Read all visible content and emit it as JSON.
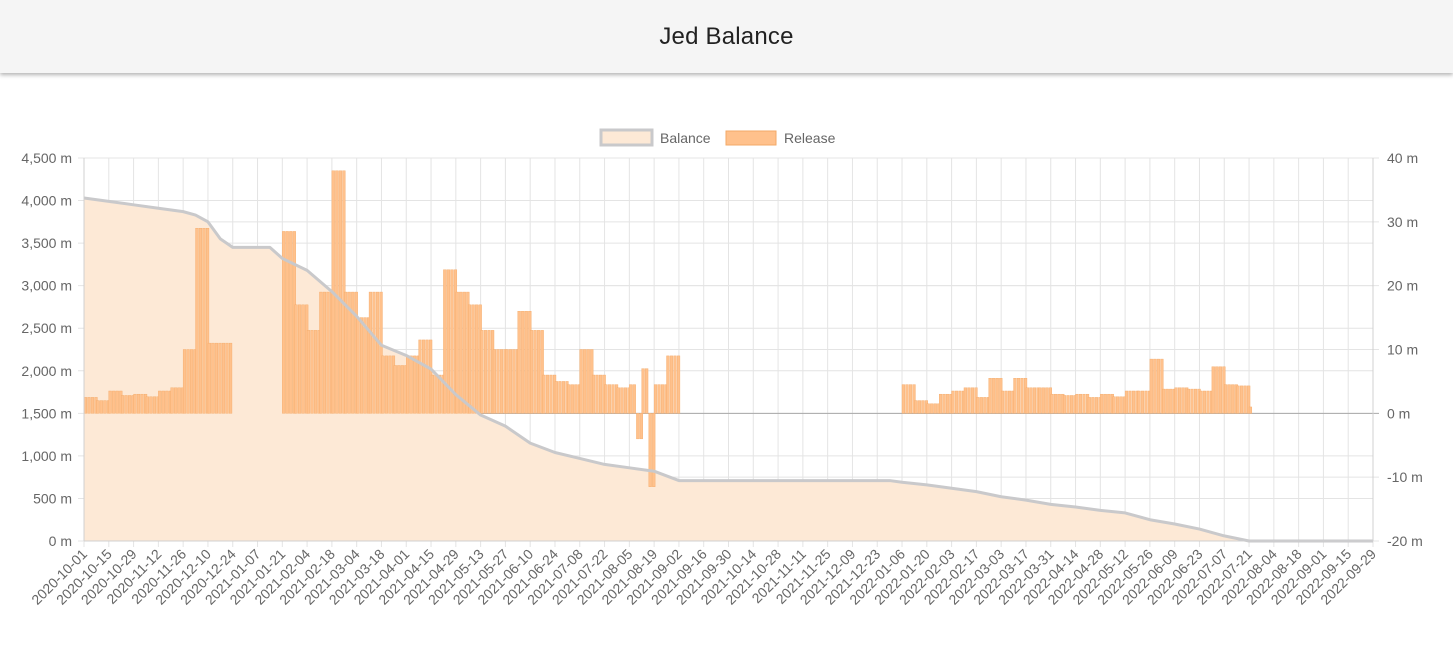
{
  "header": {
    "title": "Jed Balance"
  },
  "chart_data": {
    "type": "bar+area",
    "title": "",
    "legend": {
      "position": "top",
      "entries": [
        {
          "name": "Balance",
          "type": "area"
        },
        {
          "name": "Release",
          "type": "bar"
        }
      ]
    },
    "grid": true,
    "y_left": {
      "min": 0,
      "max": 4500,
      "step": 500,
      "suffix": " m",
      "ticks": [
        "0 m",
        "500 m",
        "1,000 m",
        "1,500 m",
        "2,000 m",
        "2,500 m",
        "3,000 m",
        "3,500 m",
        "4,000 m",
        "4,500 m"
      ]
    },
    "y_right": {
      "min": -20,
      "max": 40,
      "step": 10,
      "suffix": " m",
      "ticks": [
        "-20 m",
        "-10 m",
        "0 m",
        "10 m",
        "20 m",
        "30 m",
        "40 m"
      ]
    },
    "x": {
      "start": "2020-10-01",
      "end": "2022-09-29",
      "tick_labels": [
        "2020-10-01",
        "2020-10-15",
        "2020-10-29",
        "2020-11-12",
        "2020-11-26",
        "2020-12-10",
        "2020-12-24",
        "2021-01-07",
        "2021-01-21",
        "2021-02-04",
        "2021-02-18",
        "2021-03-04",
        "2021-03-18",
        "2021-04-01",
        "2021-04-15",
        "2021-04-29",
        "2021-05-13",
        "2021-05-27",
        "2021-06-10",
        "2021-06-24",
        "2021-07-08",
        "2021-07-22",
        "2021-08-05",
        "2021-08-19",
        "2021-09-02",
        "2021-09-16",
        "2021-09-30",
        "2021-10-14",
        "2021-10-28",
        "2021-11-11",
        "2021-11-25",
        "2021-12-09",
        "2021-12-23",
        "2022-01-06",
        "2022-01-20",
        "2022-02-03",
        "2022-02-17",
        "2022-03-03",
        "2022-03-17",
        "2022-03-31",
        "2022-04-14",
        "2022-04-28",
        "2022-05-12",
        "2022-05-26",
        "2022-06-09",
        "2022-06-23",
        "2022-07-07",
        "2022-07-21",
        "2022-08-04",
        "2022-08-18",
        "2022-09-01",
        "2022-09-15",
        "2022-09-29"
      ]
    },
    "balance": {
      "name": "Balance",
      "axis": "left",
      "points": [
        [
          "2020-10-01",
          4030
        ],
        [
          "2020-10-15",
          3990
        ],
        [
          "2020-10-29",
          3950
        ],
        [
          "2020-11-12",
          3910
        ],
        [
          "2020-11-26",
          3870
        ],
        [
          "2020-12-03",
          3830
        ],
        [
          "2020-12-10",
          3750
        ],
        [
          "2020-12-17",
          3550
        ],
        [
          "2020-12-24",
          3450
        ],
        [
          "2021-01-14",
          3450
        ],
        [
          "2021-01-21",
          3320
        ],
        [
          "2021-02-04",
          3180
        ],
        [
          "2021-02-18",
          2930
        ],
        [
          "2021-03-04",
          2640
        ],
        [
          "2021-03-18",
          2300
        ],
        [
          "2021-04-01",
          2180
        ],
        [
          "2021-04-15",
          2020
        ],
        [
          "2021-04-29",
          1720
        ],
        [
          "2021-05-13",
          1480
        ],
        [
          "2021-05-27",
          1350
        ],
        [
          "2021-06-10",
          1150
        ],
        [
          "2021-06-24",
          1040
        ],
        [
          "2021-07-08",
          970
        ],
        [
          "2021-07-22",
          900
        ],
        [
          "2021-08-05",
          860
        ],
        [
          "2021-08-19",
          820
        ],
        [
          "2021-09-02",
          710
        ],
        [
          "2021-12-30",
          710
        ],
        [
          "2022-01-06",
          690
        ],
        [
          "2022-01-20",
          660
        ],
        [
          "2022-02-03",
          620
        ],
        [
          "2022-02-17",
          580
        ],
        [
          "2022-03-03",
          520
        ],
        [
          "2022-03-17",
          480
        ],
        [
          "2022-03-31",
          430
        ],
        [
          "2022-04-14",
          400
        ],
        [
          "2022-04-28",
          360
        ],
        [
          "2022-05-12",
          330
        ],
        [
          "2022-05-26",
          250
        ],
        [
          "2022-06-09",
          200
        ],
        [
          "2022-06-23",
          140
        ],
        [
          "2022-07-07",
          60
        ],
        [
          "2022-07-21",
          0
        ],
        [
          "2022-09-29",
          0
        ]
      ]
    },
    "release": {
      "name": "Release",
      "axis": "right",
      "bar_days": 2,
      "segments": [
        [
          "2020-10-01",
          2.5
        ],
        [
          "2020-10-08",
          2
        ],
        [
          "2020-10-15",
          3.5
        ],
        [
          "2020-10-22",
          2.8
        ],
        [
          "2020-10-29",
          3
        ],
        [
          "2020-11-05",
          2.6
        ],
        [
          "2020-11-12",
          3.5
        ],
        [
          "2020-11-19",
          4
        ],
        [
          "2020-11-26",
          10
        ],
        [
          "2020-12-03",
          29
        ],
        [
          "2020-12-10",
          11
        ],
        [
          "2020-12-24",
          0
        ],
        [
          "2021-01-21",
          28.5
        ],
        [
          "2021-01-28",
          17
        ],
        [
          "2021-02-04",
          13
        ],
        [
          "2021-02-11",
          19
        ],
        [
          "2021-02-18",
          38
        ],
        [
          "2021-02-25",
          19
        ],
        [
          "2021-03-04",
          15
        ],
        [
          "2021-03-11",
          19
        ],
        [
          "2021-03-18",
          9
        ],
        [
          "2021-03-25",
          7.5
        ],
        [
          "2021-04-01",
          9
        ],
        [
          "2021-04-08",
          11.5
        ],
        [
          "2021-04-15",
          6
        ],
        [
          "2021-04-22",
          22.5
        ],
        [
          "2021-04-29",
          19
        ],
        [
          "2021-05-06",
          17
        ],
        [
          "2021-05-13",
          13
        ],
        [
          "2021-05-20",
          10
        ],
        [
          "2021-05-27",
          10
        ],
        [
          "2021-06-03",
          16
        ],
        [
          "2021-06-10",
          13
        ],
        [
          "2021-06-17",
          6
        ],
        [
          "2021-06-24",
          5
        ],
        [
          "2021-07-01",
          4.5
        ],
        [
          "2021-07-08",
          10
        ],
        [
          "2021-07-15",
          6
        ],
        [
          "2021-07-22",
          4.5
        ],
        [
          "2021-07-29",
          4
        ],
        [
          "2021-08-05",
          4.5
        ],
        [
          "2021-08-09",
          -4
        ],
        [
          "2021-08-12",
          7
        ],
        [
          "2021-08-16",
          -11.5
        ],
        [
          "2021-08-19",
          4.5
        ],
        [
          "2021-08-26",
          9
        ],
        [
          "2021-09-02",
          0
        ],
        [
          "2022-01-06",
          4.5
        ],
        [
          "2022-01-13",
          2
        ],
        [
          "2022-01-20",
          1.5
        ],
        [
          "2022-01-27",
          3
        ],
        [
          "2022-02-03",
          3.5
        ],
        [
          "2022-02-10",
          4
        ],
        [
          "2022-02-17",
          2.5
        ],
        [
          "2022-02-24",
          5.5
        ],
        [
          "2022-03-03",
          3.5
        ],
        [
          "2022-03-10",
          5.5
        ],
        [
          "2022-03-17",
          4
        ],
        [
          "2022-03-24",
          4
        ],
        [
          "2022-03-31",
          3
        ],
        [
          "2022-04-07",
          2.8
        ],
        [
          "2022-04-14",
          3
        ],
        [
          "2022-04-21",
          2.5
        ],
        [
          "2022-04-28",
          3
        ],
        [
          "2022-05-05",
          2.6
        ],
        [
          "2022-05-12",
          3.5
        ],
        [
          "2022-05-19",
          3.5
        ],
        [
          "2022-05-26",
          8.5
        ],
        [
          "2022-06-02",
          3.8
        ],
        [
          "2022-06-09",
          4
        ],
        [
          "2022-06-16",
          3.8
        ],
        [
          "2022-06-23",
          3.5
        ],
        [
          "2022-06-30",
          7.3
        ],
        [
          "2022-07-07",
          4.5
        ],
        [
          "2022-07-14",
          4.3
        ],
        [
          "2022-07-21",
          1
        ],
        [
          "2022-07-23",
          0
        ]
      ]
    },
    "colors": {
      "balance_fill": "#fde9d6",
      "balance_line": "#c9c9cb",
      "release_fill": "#ffc18c",
      "release_stroke": "#f3a967",
      "grid": "#e4e4e4",
      "zero_line": "#a9a9a9",
      "axis_text": "#666666"
    }
  }
}
